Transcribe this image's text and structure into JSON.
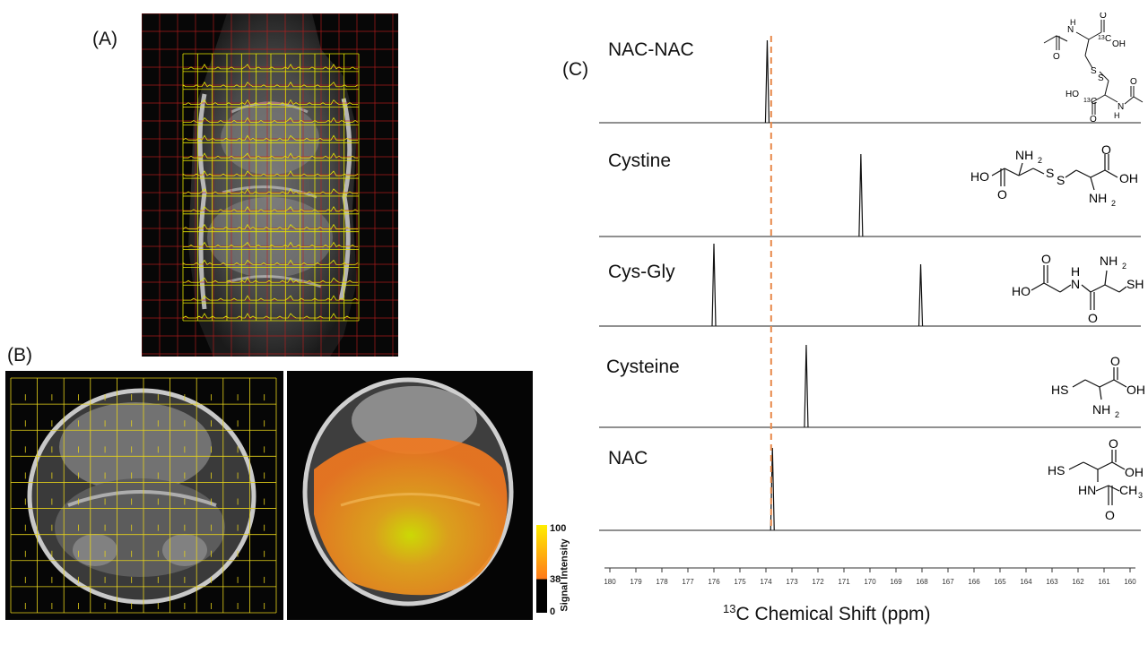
{
  "panels": {
    "a": "(A)",
    "b": "(B)",
    "c": "(C)"
  },
  "colorbar": {
    "title": "Signal Intensity",
    "ticks": [
      "100",
      "38",
      "0"
    ],
    "colors": {
      "low": "#000000",
      "mid": "#ff7a1a",
      "high": "#ffee00"
    }
  },
  "spectra": [
    {
      "label": "NAC-NAC",
      "peaks": [
        {
          "ppm": 173.95,
          "height": 1.0
        }
      ]
    },
    {
      "label": "Cystine",
      "peaks": [
        {
          "ppm": 170.35,
          "height": 1.0
        }
      ]
    },
    {
      "label": "Cys-Gly",
      "peaks": [
        {
          "ppm": 176.0,
          "height": 1.0
        },
        {
          "ppm": 168.05,
          "height": 0.75
        }
      ]
    },
    {
      "label": "Cysteine",
      "peaks": [
        {
          "ppm": 172.45,
          "height": 1.0
        }
      ]
    },
    {
      "label": "NAC",
      "peaks": [
        {
          "ppm": 173.75,
          "height": 1.0
        }
      ]
    }
  ],
  "chart_data": {
    "type": "line",
    "title": "",
    "xlabel_sup": "13",
    "xlabel": "C Chemical Shift (ppm)",
    "xlim": [
      180,
      160
    ],
    "xticks": [
      "180",
      "179",
      "178",
      "177",
      "176",
      "175",
      "174",
      "173",
      "172",
      "171",
      "170",
      "169",
      "168",
      "167",
      "166",
      "165",
      "164",
      "163",
      "162",
      "161",
      "160"
    ],
    "reference_line_ppm": 173.8,
    "reference_line_color": "#e8894a"
  },
  "structures": {
    "nacnac": {
      "N1": "N",
      "H1": "H",
      "C13a": "13",
      "Ca": "C",
      "OHa": "OH",
      "O1": "O",
      "O2": "O",
      "S1": "S",
      "S2": "S",
      "HOb": "HO",
      "C13b": "13",
      "Cb": "C",
      "Hb": "H",
      "Nb": "N",
      "O3": "O",
      "O4": "O"
    },
    "cystine": {
      "NH2a": "NH",
      "sub2": "2",
      "HO": "HO",
      "S1": "S",
      "S2": "S",
      "OH": "OH",
      "O1": "O",
      "O2": "O",
      "NH2b": "NH",
      "sub2b": "2"
    },
    "cysgly": {
      "NH2": "NH",
      "sub2": "2",
      "HO": "HO",
      "H": "H",
      "N": "N",
      "SH": "SH",
      "O1": "O",
      "O2": "O"
    },
    "cysteine": {
      "HS": "HS",
      "OH": "OH",
      "O": "O",
      "NH2": "NH",
      "sub2": "2"
    },
    "nac": {
      "HS": "HS",
      "OH": "OH",
      "O1": "O",
      "HN": "HN",
      "CH3": "CH",
      "sub3": "3",
      "O2": "O"
    }
  }
}
